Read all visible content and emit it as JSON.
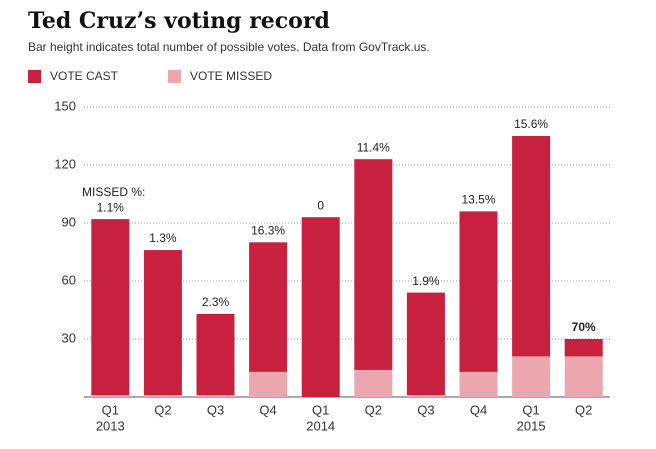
{
  "chart_data": {
    "type": "stacked_bar",
    "title": "Ted Cruz’s voting record",
    "subtitle": "Bar height indicates total number of possible votes. Data from GovTrack.us.",
    "categories": [
      "Q1",
      "Q2",
      "Q3",
      "Q4",
      "Q1",
      "Q2",
      "Q3",
      "Q4",
      "Q1",
      "Q2"
    ],
    "years": [
      "2013",
      null,
      null,
      null,
      "2014",
      null,
      null,
      null,
      "2015",
      null
    ],
    "series": [
      {
        "name": "VOTE CAST",
        "color": "#c8203f",
        "values": [
          91,
          75,
          42,
          67,
          93,
          109,
          53,
          83,
          114,
          9
        ]
      },
      {
        "name": "VOTE MISSED",
        "color": "#eba7ad",
        "values": [
          1,
          1,
          1,
          13,
          0,
          14,
          1,
          13,
          21,
          21
        ]
      }
    ],
    "missed_label_title": "MISSED %:",
    "missed_labels": [
      "1.1%",
      "1.3%",
      "2.3%",
      "16.3%",
      "0",
      "11.4%",
      "1.9%",
      "13.5%",
      "15.6%",
      "70%"
    ],
    "ylim": [
      0,
      150
    ],
    "yticks": [
      30,
      60,
      90,
      120,
      150
    ],
    "grid": true
  }
}
